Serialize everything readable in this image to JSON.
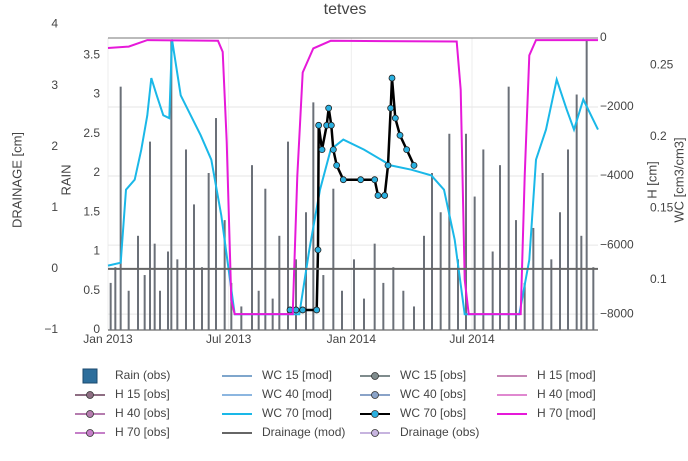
{
  "chart_data": {
    "type": "line",
    "title": "tetves",
    "xlim": [
      "2013-01-01",
      "2015-01-06"
    ],
    "xticks": [
      {
        "value": "2013-01-01",
        "label": "Jan 2013"
      },
      {
        "value": "2013-07-01",
        "label": "Jul 2013"
      },
      {
        "value": "2014-01-01",
        "label": "Jan 2014"
      },
      {
        "value": "2014-07-01",
        "label": "Jul 2014"
      }
    ],
    "ylabel": "RAIN",
    "ylim": [
      0,
      3.72
    ],
    "yticks": [
      0,
      0.5,
      1,
      1.5,
      2,
      2.5,
      3,
      3.5
    ],
    "y2label": "DRAINAGE [cm]",
    "y2lim": [
      -1,
      3.78
    ],
    "y2ticks": [
      {
        "value": -1,
        "label": "−1"
      },
      0,
      1,
      2,
      3,
      4
    ],
    "y3label": "H [cm]",
    "y3lim": [
      -8460,
      0
    ],
    "y3ticks": [
      0,
      {
        "value": -2000,
        "label": "−2000"
      },
      {
        "value": -4000,
        "label": "−4000"
      },
      {
        "value": -6000,
        "label": "−6000"
      },
      {
        "value": -8000,
        "label": "−8000"
      }
    ],
    "y4label": "WC [cm3/cm3]",
    "y4lim": [
      0.065,
      0.269
    ],
    "y4ticks": [
      0.1,
      0.15,
      0.2,
      0.25
    ],
    "grid": true,
    "series": [
      {
        "name": "Rain (obs)",
        "kind": "bar",
        "axis": "y",
        "color": "#2d6e9c",
        "bar_color": "#6b7078",
        "x": [
          "2013-01-05",
          "2013-01-12",
          "2013-01-20",
          "2013-02-01",
          "2013-02-15",
          "2013-02-25",
          "2013-03-05",
          "2013-03-12",
          "2013-03-20",
          "2013-04-01",
          "2013-04-06",
          "2013-04-15",
          "2013-04-28",
          "2013-05-10",
          "2013-05-22",
          "2013-06-01",
          "2013-06-12",
          "2013-06-25",
          "2013-07-05",
          "2013-07-20",
          "2013-08-05",
          "2013-08-15",
          "2013-08-25",
          "2013-09-05",
          "2013-09-15",
          "2013-09-28",
          "2013-10-10",
          "2013-10-25",
          "2013-11-05",
          "2013-11-20",
          "2013-12-05",
          "2013-12-18",
          "2014-01-05",
          "2014-01-20",
          "2014-02-05",
          "2014-02-18",
          "2014-03-05",
          "2014-03-20",
          "2014-04-05",
          "2014-04-20",
          "2014-05-02",
          "2014-05-15",
          "2014-05-28",
          "2014-06-10",
          "2014-06-22",
          "2014-07-05",
          "2014-07-18",
          "2014-08-01",
          "2014-08-12",
          "2014-08-25",
          "2014-09-05",
          "2014-09-18",
          "2014-10-01",
          "2014-10-15",
          "2014-10-28",
          "2014-11-10",
          "2014-11-22",
          "2014-12-05",
          "2014-12-12",
          "2014-12-20",
          "2014-12-30"
        ],
        "values": [
          0.6,
          0.8,
          3.1,
          0.5,
          1.2,
          0.7,
          2.4,
          1.1,
          0.5,
          1.0,
          3.7,
          0.9,
          2.3,
          1.6,
          0.8,
          2.0,
          2.7,
          1.4,
          0.6,
          0.3,
          2.1,
          0.5,
          1.8,
          0.4,
          1.2,
          2.4,
          0.9,
          1.5,
          2.9,
          0.7,
          1.8,
          0.5,
          0.9,
          0.4,
          1.1,
          0.6,
          0.8,
          0.5,
          0.3,
          1.2,
          2.0,
          1.5,
          2.5,
          0.9,
          2.5,
          1.7,
          2.3,
          1.0,
          2.1,
          3.1,
          1.4,
          0.6,
          1.3,
          2.0,
          0.9,
          1.5,
          2.3,
          3.0,
          1.2,
          3.7,
          0.8
        ]
      },
      {
        "name": "WC 15 [mod]",
        "kind": "line",
        "color": "#7fa6cc"
      },
      {
        "name": "WC 15 [obs]",
        "kind": "markers",
        "color": "#7f8c8d"
      },
      {
        "name": "H 15 [mod]",
        "kind": "line",
        "color": "#c586b5"
      },
      {
        "name": "H 15 [obs]",
        "kind": "markers",
        "color": "#8e6e83"
      },
      {
        "name": "WC 40 [mod]",
        "kind": "line",
        "color": "#8cb6e0"
      },
      {
        "name": "WC 40 [obs]",
        "kind": "markers",
        "color": "#8aa3c8"
      },
      {
        "name": "H 40 [mod]",
        "kind": "line",
        "color": "#e088d0"
      },
      {
        "name": "H 40 [obs]",
        "kind": "markers",
        "color": "#b57cae"
      },
      {
        "name": "WC 70 [mod]",
        "kind": "line",
        "axis": "y4",
        "color": "#1ab8e8",
        "x": [
          "2013-01-01",
          "2013-01-20",
          "2013-01-28",
          "2013-02-10",
          "2013-02-20",
          "2013-03-01",
          "2013-03-07",
          "2013-03-15",
          "2013-03-25",
          "2013-04-03",
          "2013-04-07",
          "2013-04-20",
          "2013-05-05",
          "2013-05-20",
          "2013-06-05",
          "2013-06-20",
          "2013-07-10",
          "2013-10-15",
          "2013-10-30",
          "2013-11-15",
          "2013-12-01",
          "2013-12-20",
          "2014-01-20",
          "2014-03-01",
          "2014-04-01",
          "2014-05-01",
          "2014-05-20",
          "2014-06-05",
          "2014-06-20",
          "2014-09-10",
          "2014-09-25",
          "2014-10-05",
          "2014-10-20",
          "2014-11-05",
          "2014-11-20",
          "2014-12-01",
          "2014-12-15",
          "2015-01-06"
        ],
        "values": [
          0.11,
          0.112,
          0.163,
          0.17,
          0.191,
          0.215,
          0.241,
          0.229,
          0.215,
          0.213,
          0.268,
          0.229,
          0.215,
          0.201,
          0.184,
          0.145,
          0.076,
          0.076,
          0.121,
          0.163,
          0.191,
          0.198,
          0.191,
          0.18,
          0.177,
          0.173,
          0.163,
          0.128,
          0.076,
          0.076,
          0.114,
          0.184,
          0.205,
          0.24,
          0.219,
          0.205,
          0.226,
          0.205
        ]
      },
      {
        "name": "WC 70 [obs]",
        "kind": "markers",
        "axis": "y4",
        "color": "#000000",
        "marker_color": "#2ab0e0",
        "x": [
          "2013-10-01",
          "2013-10-10",
          "2013-10-20",
          "2013-11-10",
          "2013-11-12",
          "2013-11-13",
          "2013-11-18",
          "2013-11-25",
          "2013-11-28",
          "2013-12-02",
          "2013-12-05",
          "2013-12-10",
          "2013-12-20",
          "2014-01-15",
          "2014-02-05",
          "2014-02-10",
          "2014-02-20",
          "2014-02-25",
          "2014-03-01",
          "2014-03-03",
          "2014-03-08",
          "2014-03-15",
          "2014-03-25",
          "2014-04-05"
        ],
        "values": [
          0.079,
          0.079,
          0.079,
          0.079,
          0.121,
          0.208,
          0.191,
          0.208,
          0.22,
          0.208,
          0.191,
          0.18,
          0.17,
          0.17,
          0.17,
          0.159,
          0.159,
          0.18,
          0.22,
          0.241,
          0.213,
          0.201,
          0.191,
          0.18
        ]
      },
      {
        "name": "H 70 [mod]",
        "kind": "line",
        "axis": "y3",
        "color": "#e619d9",
        "x": [
          "2013-01-01",
          "2013-02-01",
          "2013-03-01",
          "2013-06-15",
          "2013-06-22",
          "2013-06-28",
          "2013-07-05",
          "2013-07-10",
          "2013-10-05",
          "2013-10-12",
          "2013-10-20",
          "2013-11-05",
          "2013-12-01",
          "2014-06-08",
          "2014-06-14",
          "2014-06-20",
          "2014-06-26",
          "2014-09-12",
          "2014-09-18",
          "2014-09-25",
          "2014-10-05",
          "2015-01-06"
        ],
        "values": [
          -290,
          -250,
          -60,
          -80,
          -400,
          -3000,
          -7600,
          -8000,
          -8000,
          -4000,
          -1000,
          -300,
          -80,
          -100,
          -1500,
          -7000,
          -8000,
          -8000,
          -4000,
          -500,
          -60,
          -60
        ]
      },
      {
        "name": "H 70 [obs]",
        "kind": "markers",
        "color": "#c57fc8"
      },
      {
        "name": "Drainage (mod)",
        "kind": "line",
        "axis": "y2",
        "color": "#666666",
        "x": [
          "2013-01-01",
          "2015-01-06"
        ],
        "values": [
          0,
          0
        ]
      },
      {
        "name": "Drainage (obs)",
        "kind": "markers",
        "color": "#c7b4df"
      }
    ]
  }
}
